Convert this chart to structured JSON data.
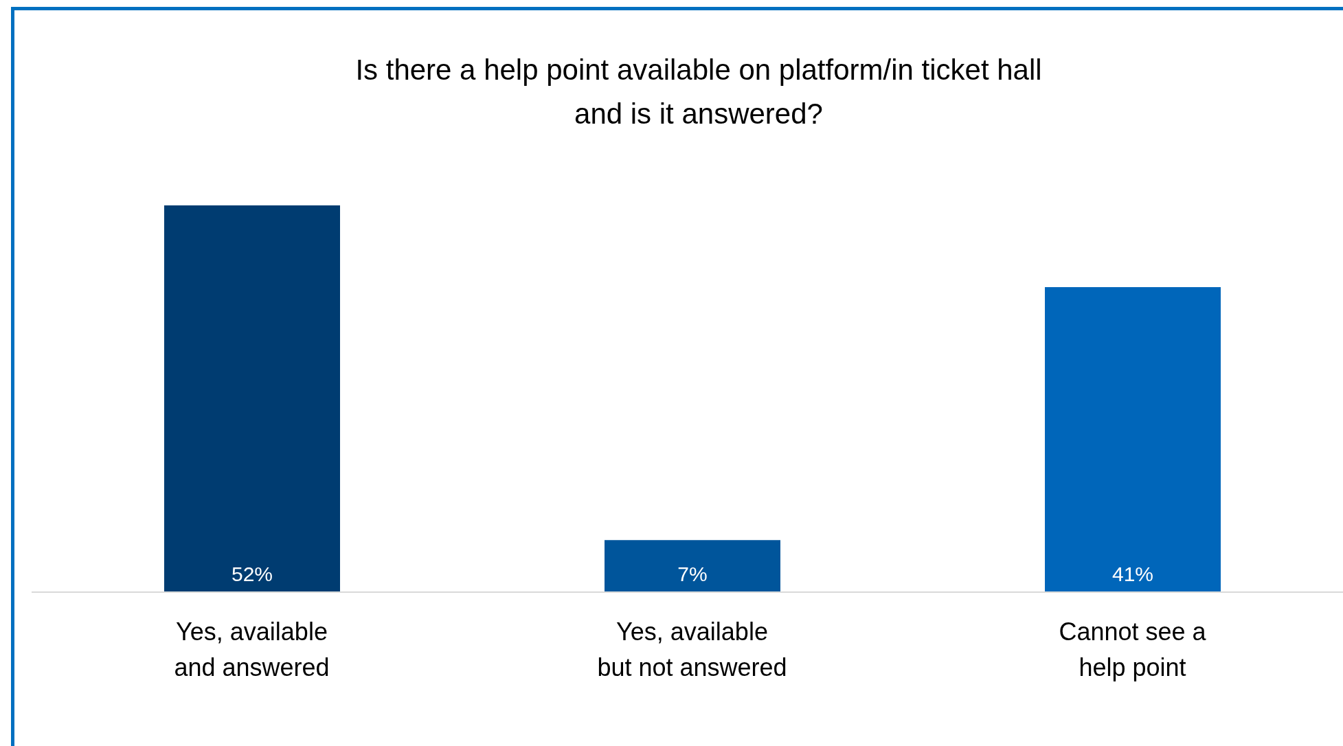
{
  "chart_data": {
    "type": "bar",
    "title": "Is there a help point available on platform/in ticket hall\nand is it answered?",
    "categories": [
      "Yes, available and answered",
      "Yes, available but not answered",
      "Cannot see a help point"
    ],
    "values": [
      52,
      7,
      41
    ],
    "colors": [
      "#003c71",
      "#00559b",
      "#0066ba"
    ],
    "value_labels": [
      "52%",
      "7%",
      "41%"
    ],
    "data_labels": true
  }
}
